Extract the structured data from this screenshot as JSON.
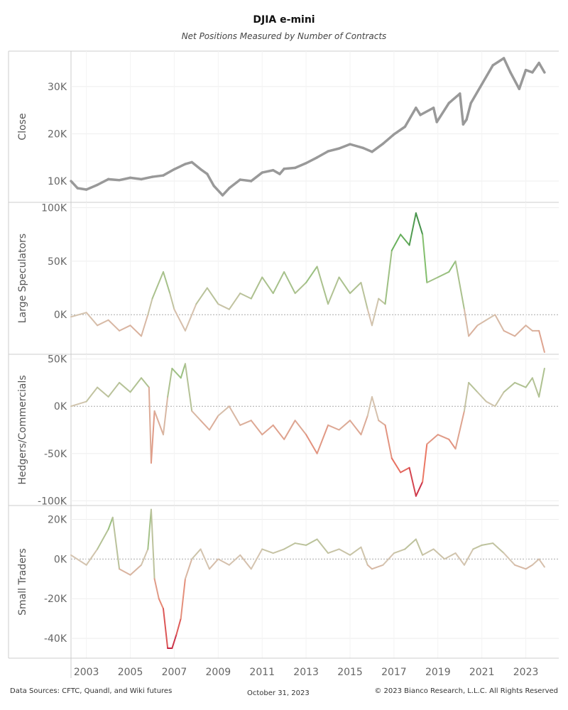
{
  "header": {
    "title": "DJIA e-mini",
    "subtitle": "Net Positions Measured by Number of Contracts"
  },
  "footer": {
    "sources": "Data Sources: CFTC, Quandl, and Wiki futures",
    "date": "October 31, 2023",
    "copyright": "© 2023 Bianco Research, L.L.C. All Rights Reserved"
  },
  "chart_data": {
    "type": "line",
    "x_axis": {
      "range": [
        2002.3,
        2024.5
      ],
      "ticks": [
        2003,
        2005,
        2007,
        2009,
        2011,
        2013,
        2015,
        2017,
        2019,
        2021,
        2023
      ]
    },
    "grid": true,
    "panels": [
      {
        "id": "close",
        "ylabel": "Close",
        "ylim": [
          5500,
          37500
        ],
        "yticks": [
          {
            "v": 10000,
            "label": "10K"
          },
          {
            "v": 20000,
            "label": "20K"
          },
          {
            "v": 30000,
            "label": "30K"
          }
        ],
        "color_mode": "gray",
        "color": "#999999",
        "points": [
          [
            2002.3,
            10000
          ],
          [
            2002.6,
            8500
          ],
          [
            2003.0,
            8200
          ],
          [
            2003.5,
            9200
          ],
          [
            2004.0,
            10400
          ],
          [
            2004.5,
            10200
          ],
          [
            2005.0,
            10700
          ],
          [
            2005.5,
            10400
          ],
          [
            2006.0,
            10900
          ],
          [
            2006.5,
            11200
          ],
          [
            2007.0,
            12500
          ],
          [
            2007.5,
            13600
          ],
          [
            2007.8,
            14000
          ],
          [
            2008.2,
            12500
          ],
          [
            2008.5,
            11500
          ],
          [
            2008.8,
            9000
          ],
          [
            2009.2,
            7000
          ],
          [
            2009.5,
            8500
          ],
          [
            2010.0,
            10300
          ],
          [
            2010.5,
            10000
          ],
          [
            2011.0,
            11800
          ],
          [
            2011.5,
            12300
          ],
          [
            2011.8,
            11500
          ],
          [
            2012.0,
            12600
          ],
          [
            2012.5,
            12800
          ],
          [
            2013.0,
            13800
          ],
          [
            2013.5,
            15000
          ],
          [
            2014.0,
            16300
          ],
          [
            2014.5,
            16900
          ],
          [
            2015.0,
            17800
          ],
          [
            2015.6,
            17000
          ],
          [
            2016.0,
            16200
          ],
          [
            2016.5,
            17900
          ],
          [
            2017.0,
            19900
          ],
          [
            2017.5,
            21500
          ],
          [
            2018.0,
            25500
          ],
          [
            2018.2,
            24000
          ],
          [
            2018.8,
            25500
          ],
          [
            2018.95,
            22500
          ],
          [
            2019.5,
            26500
          ],
          [
            2020.0,
            28500
          ],
          [
            2020.15,
            22000
          ],
          [
            2020.3,
            23000
          ],
          [
            2020.5,
            26500
          ],
          [
            2021.0,
            30500
          ],
          [
            2021.5,
            34500
          ],
          [
            2022.0,
            36000
          ],
          [
            2022.3,
            33000
          ],
          [
            2022.7,
            29500
          ],
          [
            2023.0,
            33500
          ],
          [
            2023.3,
            33000
          ],
          [
            2023.6,
            35000
          ],
          [
            2023.85,
            33000
          ]
        ]
      },
      {
        "id": "large",
        "ylabel": "Large Speculators",
        "ylim": [
          -37000,
          105000
        ],
        "yticks": [
          {
            "v": 0,
            "label": "0K"
          },
          {
            "v": 50000,
            "label": "50K"
          },
          {
            "v": 100000,
            "label": "100K"
          }
        ],
        "color_mode": "diverging",
        "points": [
          [
            2002.3,
            -2000
          ],
          [
            2003.0,
            2000
          ],
          [
            2003.5,
            -10000
          ],
          [
            2004.0,
            -5000
          ],
          [
            2004.5,
            -15000
          ],
          [
            2005.0,
            -10000
          ],
          [
            2005.5,
            -20000
          ],
          [
            2005.8,
            0
          ],
          [
            2006.0,
            15000
          ],
          [
            2006.5,
            40000
          ],
          [
            2006.8,
            20000
          ],
          [
            2007.0,
            5000
          ],
          [
            2007.5,
            -15000
          ],
          [
            2008.0,
            10000
          ],
          [
            2008.5,
            25000
          ],
          [
            2009.0,
            10000
          ],
          [
            2009.5,
            5000
          ],
          [
            2010.0,
            20000
          ],
          [
            2010.5,
            15000
          ],
          [
            2011.0,
            35000
          ],
          [
            2011.5,
            20000
          ],
          [
            2012.0,
            40000
          ],
          [
            2012.5,
            20000
          ],
          [
            2013.0,
            30000
          ],
          [
            2013.5,
            45000
          ],
          [
            2014.0,
            10000
          ],
          [
            2014.5,
            35000
          ],
          [
            2015.0,
            20000
          ],
          [
            2015.5,
            30000
          ],
          [
            2015.8,
            5000
          ],
          [
            2016.0,
            -10000
          ],
          [
            2016.3,
            15000
          ],
          [
            2016.6,
            10000
          ],
          [
            2016.9,
            60000
          ],
          [
            2017.3,
            75000
          ],
          [
            2017.7,
            65000
          ],
          [
            2018.0,
            95000
          ],
          [
            2018.3,
            75000
          ],
          [
            2018.5,
            30000
          ],
          [
            2019.0,
            35000
          ],
          [
            2019.5,
            40000
          ],
          [
            2019.8,
            50000
          ],
          [
            2020.2,
            5000
          ],
          [
            2020.4,
            -20000
          ],
          [
            2020.8,
            -10000
          ],
          [
            2021.2,
            -5000
          ],
          [
            2021.6,
            0
          ],
          [
            2022.0,
            -15000
          ],
          [
            2022.5,
            -20000
          ],
          [
            2023.0,
            -10000
          ],
          [
            2023.3,
            -15000
          ],
          [
            2023.6,
            -15000
          ],
          [
            2023.85,
            -35000
          ]
        ]
      },
      {
        "id": "hedgers",
        "ylabel": "Hedgers/Commercials",
        "ylim": [
          -105000,
          55000
        ],
        "yticks": [
          {
            "v": -100000,
            "label": "-100K"
          },
          {
            "v": -50000,
            "label": "-50K"
          },
          {
            "v": 0,
            "label": "0K"
          },
          {
            "v": 50000,
            "label": "50K"
          }
        ],
        "color_mode": "diverging",
        "points": [
          [
            2002.3,
            0
          ],
          [
            2003.0,
            5000
          ],
          [
            2003.5,
            20000
          ],
          [
            2004.0,
            10000
          ],
          [
            2004.5,
            25000
          ],
          [
            2005.0,
            15000
          ],
          [
            2005.5,
            30000
          ],
          [
            2005.85,
            20000
          ],
          [
            2005.95,
            -60000
          ],
          [
            2006.1,
            -5000
          ],
          [
            2006.5,
            -30000
          ],
          [
            2006.7,
            10000
          ],
          [
            2006.9,
            40000
          ],
          [
            2007.3,
            30000
          ],
          [
            2007.5,
            45000
          ],
          [
            2007.8,
            -5000
          ],
          [
            2008.2,
            -15000
          ],
          [
            2008.6,
            -25000
          ],
          [
            2009.0,
            -10000
          ],
          [
            2009.5,
            0
          ],
          [
            2010.0,
            -20000
          ],
          [
            2010.5,
            -15000
          ],
          [
            2011.0,
            -30000
          ],
          [
            2011.5,
            -20000
          ],
          [
            2012.0,
            -35000
          ],
          [
            2012.5,
            -15000
          ],
          [
            2013.0,
            -30000
          ],
          [
            2013.5,
            -50000
          ],
          [
            2014.0,
            -20000
          ],
          [
            2014.5,
            -25000
          ],
          [
            2015.0,
            -15000
          ],
          [
            2015.5,
            -30000
          ],
          [
            2015.8,
            -10000
          ],
          [
            2016.0,
            10000
          ],
          [
            2016.3,
            -15000
          ],
          [
            2016.6,
            -20000
          ],
          [
            2016.9,
            -55000
          ],
          [
            2017.3,
            -70000
          ],
          [
            2017.7,
            -65000
          ],
          [
            2018.0,
            -95000
          ],
          [
            2018.3,
            -80000
          ],
          [
            2018.5,
            -40000
          ],
          [
            2019.0,
            -30000
          ],
          [
            2019.5,
            -35000
          ],
          [
            2019.8,
            -45000
          ],
          [
            2020.2,
            -5000
          ],
          [
            2020.4,
            25000
          ],
          [
            2020.8,
            15000
          ],
          [
            2021.2,
            5000
          ],
          [
            2021.6,
            0
          ],
          [
            2022.0,
            15000
          ],
          [
            2022.5,
            25000
          ],
          [
            2023.0,
            20000
          ],
          [
            2023.3,
            30000
          ],
          [
            2023.6,
            10000
          ],
          [
            2023.85,
            40000
          ]
        ]
      },
      {
        "id": "small",
        "ylabel": "Small Traders",
        "ylim": [
          -50000,
          27000
        ],
        "yticks": [
          {
            "v": -40000,
            "label": "-40K"
          },
          {
            "v": -20000,
            "label": "-20K"
          },
          {
            "v": 0,
            "label": "0K"
          },
          {
            "v": 20000,
            "label": "20K"
          }
        ],
        "color_mode": "diverging",
        "points": [
          [
            2002.3,
            2000
          ],
          [
            2003.0,
            -3000
          ],
          [
            2003.5,
            5000
          ],
          [
            2004.0,
            15000
          ],
          [
            2004.2,
            21000
          ],
          [
            2004.5,
            -5000
          ],
          [
            2005.0,
            -8000
          ],
          [
            2005.5,
            -3000
          ],
          [
            2005.8,
            5000
          ],
          [
            2005.95,
            25000
          ],
          [
            2006.1,
            -10000
          ],
          [
            2006.3,
            -20000
          ],
          [
            2006.5,
            -25000
          ],
          [
            2006.7,
            -45000
          ],
          [
            2006.9,
            -45000
          ],
          [
            2007.1,
            -38000
          ],
          [
            2007.3,
            -30000
          ],
          [
            2007.5,
            -10000
          ],
          [
            2007.8,
            0
          ],
          [
            2008.2,
            5000
          ],
          [
            2008.6,
            -5000
          ],
          [
            2009.0,
            0
          ],
          [
            2009.5,
            -3000
          ],
          [
            2010.0,
            2000
          ],
          [
            2010.5,
            -5000
          ],
          [
            2011.0,
            5000
          ],
          [
            2011.5,
            3000
          ],
          [
            2012.0,
            5000
          ],
          [
            2012.5,
            8000
          ],
          [
            2013.0,
            7000
          ],
          [
            2013.5,
            10000
          ],
          [
            2014.0,
            3000
          ],
          [
            2014.5,
            5000
          ],
          [
            2015.0,
            2000
          ],
          [
            2015.5,
            6000
          ],
          [
            2015.8,
            -3000
          ],
          [
            2016.0,
            -5000
          ],
          [
            2016.5,
            -3000
          ],
          [
            2017.0,
            3000
          ],
          [
            2017.5,
            5000
          ],
          [
            2018.0,
            10000
          ],
          [
            2018.3,
            2000
          ],
          [
            2018.8,
            5000
          ],
          [
            2019.3,
            0
          ],
          [
            2019.8,
            3000
          ],
          [
            2020.2,
            -3000
          ],
          [
            2020.6,
            5000
          ],
          [
            2021.0,
            7000
          ],
          [
            2021.5,
            8000
          ],
          [
            2022.0,
            3000
          ],
          [
            2022.5,
            -3000
          ],
          [
            2023.0,
            -5000
          ],
          [
            2023.3,
            -3000
          ],
          [
            2023.6,
            0
          ],
          [
            2023.85,
            -4000
          ]
        ]
      }
    ]
  }
}
